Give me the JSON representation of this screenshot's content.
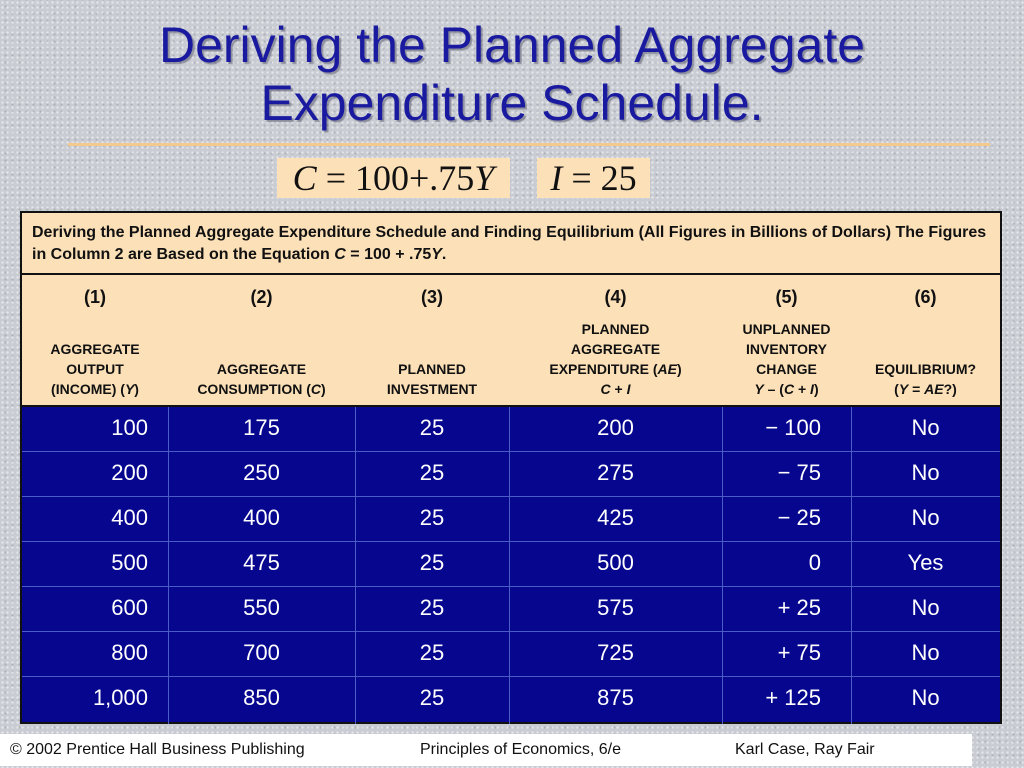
{
  "slide": {
    "title_line1": "Deriving the Planned Aggregate",
    "title_line2": "Expenditure Schedule.",
    "equation_c": {
      "var": "C",
      "rest": " = 100+.75",
      "var2": "Y"
    },
    "equation_i": {
      "var": "I",
      "rest": " = 25"
    }
  },
  "table": {
    "caption_part1": "Deriving the Planned Aggregate Expenditure Schedule and Finding Equilibrium (All Figures in Billions of Dollars) The Figures in Column 2 are Based on the Equation ",
    "caption_var_c": "C",
    "caption_part2": " = 100 + .75",
    "caption_var_y": "Y",
    "caption_end": ".",
    "columns": [
      {
        "num": "(1)",
        "lines": [
          "AGGREGATE",
          "OUTPUT",
          "(INCOME) (Y)"
        ]
      },
      {
        "num": "(2)",
        "lines": [
          "AGGREGATE",
          "CONSUMPTION (C)"
        ]
      },
      {
        "num": "(3)",
        "lines": [
          "PLANNED",
          "INVESTMENT"
        ]
      },
      {
        "num": "(4)",
        "lines": [
          "PLANNED",
          "AGGREGATE",
          "EXPENDITURE (AE)",
          "C + I"
        ]
      },
      {
        "num": "(5)",
        "lines": [
          "UNPLANNED",
          "INVENTORY",
          "CHANGE",
          "Y – (C + I)"
        ]
      },
      {
        "num": "(6)",
        "lines": [
          "EQUILIBRIUM?",
          "(Y = AE?)"
        ]
      }
    ],
    "rows": [
      [
        "100",
        "175",
        "25",
        "200",
        "− 100",
        "No"
      ],
      [
        "200",
        "250",
        "25",
        "275",
        "− 75",
        "No"
      ],
      [
        "400",
        "400",
        "25",
        "425",
        "− 25",
        "No"
      ],
      [
        "500",
        "475",
        "25",
        "500",
        "0",
        "Yes"
      ],
      [
        "600",
        "550",
        "25",
        "575",
        "+ 25",
        "No"
      ],
      [
        "800",
        "700",
        "25",
        "725",
        "+ 75",
        "No"
      ],
      [
        "1,000",
        "850",
        "25",
        "875",
        "+ 125",
        "No"
      ]
    ]
  },
  "footer": {
    "copyright": "© 2002 Prentice Hall Business Publishing",
    "book": "Principles of Economics, 6/e",
    "authors": "Karl Case, Ray Fair"
  },
  "colors": {
    "title": "#1a1aa0",
    "table_header_bg": "#fbe0b8",
    "table_body_bg": "#06068f",
    "rule": "#f3c98e"
  }
}
